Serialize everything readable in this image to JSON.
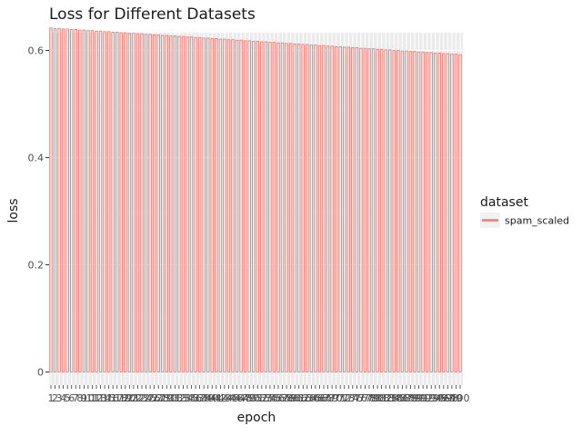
{
  "chart_data": {
    "type": "bar",
    "title": "Loss for Different Datasets",
    "xlabel": "epoch",
    "ylabel": "loss",
    "ylim": [
      0,
      0.66
    ],
    "yticks": [
      0,
      0.2,
      0.4,
      0.6
    ],
    "ytick_labels": [
      "0",
      "0.2",
      "0.4",
      "0.6"
    ],
    "grid": true,
    "legend_position": "right",
    "legend_title": "dataset",
    "series": [
      {
        "name": "spam_scaled",
        "color": "#f8766d",
        "x": [
          1,
          2,
          3,
          4,
          5,
          6,
          7,
          8,
          9,
          10,
          11,
          12,
          13,
          14,
          15,
          16,
          17,
          18,
          19,
          20,
          21,
          22,
          23,
          24,
          25,
          26,
          27,
          28,
          29,
          30,
          31,
          32,
          33,
          34,
          35,
          36,
          37,
          38,
          39,
          40,
          41,
          42,
          43,
          44,
          45,
          46,
          47,
          48,
          49,
          50,
          51,
          52,
          53,
          54,
          55,
          56,
          57,
          58,
          59,
          60,
          61,
          62,
          63,
          64,
          65,
          66,
          67,
          68,
          69,
          70,
          71,
          72,
          73,
          74,
          75,
          76,
          77,
          78,
          79,
          80,
          81,
          82,
          83,
          84,
          85,
          86,
          87,
          88,
          89,
          90,
          91,
          92,
          93,
          94,
          95,
          96,
          97,
          98,
          99,
          100
        ],
        "values": [
          0.642,
          0.641,
          0.641,
          0.64,
          0.64,
          0.639,
          0.639,
          0.638,
          0.638,
          0.637,
          0.637,
          0.636,
          0.636,
          0.635,
          0.635,
          0.634,
          0.634,
          0.633,
          0.633,
          0.632,
          0.632,
          0.631,
          0.631,
          0.63,
          0.63,
          0.629,
          0.629,
          0.628,
          0.628,
          0.627,
          0.627,
          0.626,
          0.626,
          0.625,
          0.625,
          0.624,
          0.624,
          0.623,
          0.623,
          0.622,
          0.622,
          0.621,
          0.621,
          0.62,
          0.62,
          0.619,
          0.619,
          0.618,
          0.618,
          0.617,
          0.617,
          0.616,
          0.616,
          0.615,
          0.615,
          0.614,
          0.614,
          0.613,
          0.613,
          0.612,
          0.612,
          0.611,
          0.611,
          0.61,
          0.61,
          0.609,
          0.609,
          0.608,
          0.608,
          0.607,
          0.607,
          0.606,
          0.606,
          0.605,
          0.605,
          0.604,
          0.604,
          0.603,
          0.603,
          0.602,
          0.602,
          0.601,
          0.601,
          0.6,
          0.6,
          0.599,
          0.599,
          0.598,
          0.598,
          0.597,
          0.597,
          0.596,
          0.596,
          0.595,
          0.595,
          0.594,
          0.594,
          0.593,
          0.593,
          0.592
        ]
      }
    ]
  }
}
